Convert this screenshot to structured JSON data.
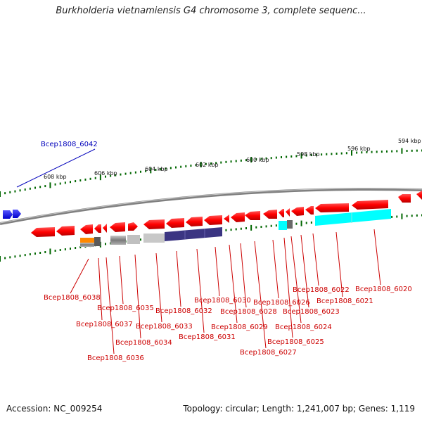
{
  "title": "Burkholderia vietnamiensis G4 chromosome 3, complete sequenc...",
  "footer": {
    "accession": "Accession: NC_009254",
    "topology": "Topology: circular; Length: 1,241,007 bp; Genes: 1,119"
  },
  "ruler": {
    "tick_labels": [
      "608 kbp",
      "606 kbp",
      "604 kbp",
      "602 kbp",
      "600 kbp",
      "598 kbp",
      "596 kbp",
      "594 kbp"
    ]
  },
  "colors": {
    "gene_forward": "#ff0000",
    "gene_reverse": "#0000ff",
    "ruler": "#006600",
    "label_red": "#cc0000",
    "label_blue": "#0000bb",
    "cyan_feature": "#00ffff",
    "purple_feature": "#3b3582",
    "orange_feature": "#ff8800"
  },
  "gene_labels": [
    {
      "text": "Bcep1808_6042",
      "color": "blue"
    },
    {
      "text": "Bcep1808_6038",
      "color": "red"
    },
    {
      "text": "Bcep1808_6037",
      "color": "red"
    },
    {
      "text": "Bcep1808_6036",
      "color": "red"
    },
    {
      "text": "Bcep1808_6035",
      "color": "red"
    },
    {
      "text": "Bcep1808_6034",
      "color": "red"
    },
    {
      "text": "Bcep1808_6033",
      "color": "red"
    },
    {
      "text": "Bcep1808_6032",
      "color": "red"
    },
    {
      "text": "Bcep1808_6031",
      "color": "red"
    },
    {
      "text": "Bcep1808_6030",
      "color": "red"
    },
    {
      "text": "Bcep1808_6029",
      "color": "red"
    },
    {
      "text": "Bcep1808_6028",
      "color": "red"
    },
    {
      "text": "Bcep1808_6027",
      "color": "red"
    },
    {
      "text": "Bcep1808_6026",
      "color": "red"
    },
    {
      "text": "Bcep1808_6025",
      "color": "red"
    },
    {
      "text": "Bcep1808_6024",
      "color": "red"
    },
    {
      "text": "Bcep1808_6023",
      "color": "red"
    },
    {
      "text": "Bcep1808_6022",
      "color": "red"
    },
    {
      "text": "Bcep1808_6021",
      "color": "red"
    },
    {
      "text": "Bcep1808_6020",
      "color": "red"
    }
  ]
}
